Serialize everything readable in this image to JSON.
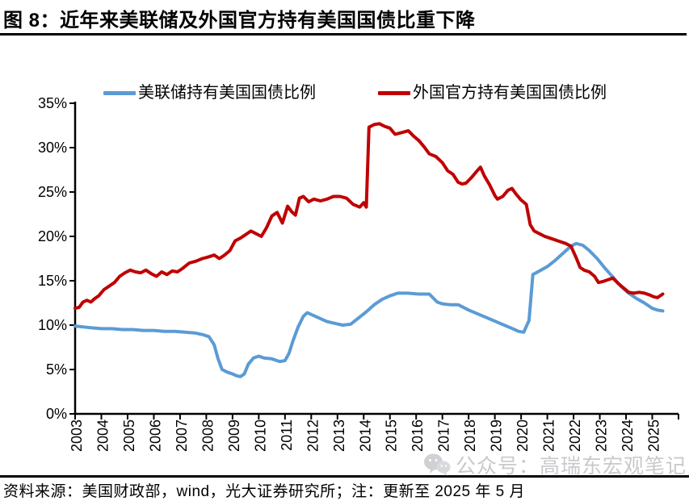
{
  "title": "图 8：近年来美联储及外国官方持有美国国债比重下降",
  "legend": [
    {
      "label": "美联储持有美国国债比例",
      "color": "#5B9BD5"
    },
    {
      "label": "外国官方持有美国国债比例",
      "color": "#C00000"
    }
  ],
  "watermark": {
    "icon": "wechat-icon",
    "text": "公众号：高瑞东宏观笔记"
  },
  "footer": {
    "text": "资料来源：美国财政部，wind，光大证券研究所；注：更新至 2025 年 5 月"
  },
  "chart_data": {
    "type": "line",
    "title": "图 8：近年来美联储及外国官方持有美国国债比重下降",
    "xlabel": "",
    "ylabel": "",
    "ylim": [
      0,
      35
    ],
    "xlim": [
      2003,
      2026
    ],
    "y_tick_unit": "%",
    "y_ticks": [
      "0%",
      "5%",
      "10%",
      "15%",
      "20%",
      "25%",
      "30%",
      "35%"
    ],
    "x_ticks": [
      "2003",
      "2004",
      "2005",
      "2006",
      "2007",
      "2008",
      "2009",
      "2010",
      "2011",
      "2012",
      "2013",
      "2014",
      "2015",
      "2016",
      "2017",
      "2018",
      "2019",
      "2020",
      "2021",
      "2022",
      "2023",
      "2024",
      "2025"
    ],
    "grid": false,
    "legend_position": "top",
    "axis_color": "#000000",
    "series": [
      {
        "name": "美联储持有美国国债比例",
        "color": "#5B9BD5",
        "points": [
          [
            2003.0,
            9.9
          ],
          [
            2003.3,
            9.8
          ],
          [
            2003.6,
            9.7
          ],
          [
            2004.0,
            9.6
          ],
          [
            2004.4,
            9.6
          ],
          [
            2004.8,
            9.5
          ],
          [
            2005.2,
            9.5
          ],
          [
            2005.6,
            9.4
          ],
          [
            2006.0,
            9.4
          ],
          [
            2006.4,
            9.3
          ],
          [
            2006.8,
            9.3
          ],
          [
            2007.2,
            9.2
          ],
          [
            2007.6,
            9.1
          ],
          [
            2007.9,
            8.9
          ],
          [
            2008.1,
            8.7
          ],
          [
            2008.3,
            7.8
          ],
          [
            2008.45,
            6.2
          ],
          [
            2008.6,
            5.0
          ],
          [
            2008.8,
            4.7
          ],
          [
            2009.0,
            4.5
          ],
          [
            2009.15,
            4.3
          ],
          [
            2009.3,
            4.2
          ],
          [
            2009.45,
            4.5
          ],
          [
            2009.6,
            5.6
          ],
          [
            2009.8,
            6.3
          ],
          [
            2010.0,
            6.5
          ],
          [
            2010.2,
            6.3
          ],
          [
            2010.5,
            6.2
          ],
          [
            2010.8,
            5.9
          ],
          [
            2011.0,
            6.0
          ],
          [
            2011.15,
            6.8
          ],
          [
            2011.3,
            8.2
          ],
          [
            2011.5,
            9.8
          ],
          [
            2011.7,
            11.0
          ],
          [
            2011.85,
            11.4
          ],
          [
            2012.0,
            11.2
          ],
          [
            2012.3,
            10.8
          ],
          [
            2012.6,
            10.4
          ],
          [
            2012.9,
            10.2
          ],
          [
            2013.2,
            10.0
          ],
          [
            2013.5,
            10.1
          ],
          [
            2013.8,
            10.8
          ],
          [
            2014.1,
            11.5
          ],
          [
            2014.4,
            12.3
          ],
          [
            2014.7,
            12.9
          ],
          [
            2015.0,
            13.3
          ],
          [
            2015.3,
            13.6
          ],
          [
            2015.7,
            13.6
          ],
          [
            2016.1,
            13.5
          ],
          [
            2016.5,
            13.5
          ],
          [
            2016.8,
            12.6
          ],
          [
            2017.0,
            12.4
          ],
          [
            2017.3,
            12.3
          ],
          [
            2017.6,
            12.3
          ],
          [
            2018.0,
            11.7
          ],
          [
            2018.4,
            11.2
          ],
          [
            2018.8,
            10.7
          ],
          [
            2019.2,
            10.2
          ],
          [
            2019.6,
            9.7
          ],
          [
            2019.9,
            9.3
          ],
          [
            2020.1,
            9.2
          ],
          [
            2020.25,
            10.2
          ],
          [
            2020.3,
            10.5
          ],
          [
            2020.45,
            15.7
          ],
          [
            2020.7,
            16.1
          ],
          [
            2021.0,
            16.6
          ],
          [
            2021.3,
            17.3
          ],
          [
            2021.6,
            18.1
          ],
          [
            2021.9,
            18.9
          ],
          [
            2022.1,
            19.2
          ],
          [
            2022.35,
            19.0
          ],
          [
            2022.6,
            18.4
          ],
          [
            2022.9,
            17.5
          ],
          [
            2023.2,
            16.4
          ],
          [
            2023.5,
            15.4
          ],
          [
            2023.8,
            14.4
          ],
          [
            2024.1,
            13.6
          ],
          [
            2024.4,
            13.0
          ],
          [
            2024.7,
            12.5
          ],
          [
            2025.0,
            11.9
          ],
          [
            2025.2,
            11.7
          ],
          [
            2025.4,
            11.6
          ]
        ]
      },
      {
        "name": "外国官方持有美国国债比例",
        "color": "#C00000",
        "points": [
          [
            2003.0,
            11.9
          ],
          [
            2003.15,
            12.0
          ],
          [
            2003.3,
            12.6
          ],
          [
            2003.45,
            12.8
          ],
          [
            2003.6,
            12.6
          ],
          [
            2003.75,
            13.0
          ],
          [
            2003.9,
            13.3
          ],
          [
            2004.1,
            14.0
          ],
          [
            2004.3,
            14.4
          ],
          [
            2004.5,
            14.8
          ],
          [
            2004.7,
            15.5
          ],
          [
            2004.9,
            15.9
          ],
          [
            2005.1,
            16.2
          ],
          [
            2005.3,
            16.0
          ],
          [
            2005.5,
            15.9
          ],
          [
            2005.7,
            16.2
          ],
          [
            2005.9,
            15.8
          ],
          [
            2006.1,
            15.5
          ],
          [
            2006.3,
            16.0
          ],
          [
            2006.5,
            15.7
          ],
          [
            2006.7,
            16.1
          ],
          [
            2006.9,
            16.0
          ],
          [
            2007.1,
            16.4
          ],
          [
            2007.35,
            17.0
          ],
          [
            2007.6,
            17.2
          ],
          [
            2007.85,
            17.5
          ],
          [
            2008.1,
            17.7
          ],
          [
            2008.3,
            17.9
          ],
          [
            2008.5,
            17.5
          ],
          [
            2008.7,
            17.9
          ],
          [
            2008.9,
            18.4
          ],
          [
            2009.1,
            19.5
          ],
          [
            2009.3,
            19.8
          ],
          [
            2009.5,
            20.2
          ],
          [
            2009.7,
            20.6
          ],
          [
            2009.9,
            20.3
          ],
          [
            2010.1,
            20.0
          ],
          [
            2010.3,
            21.0
          ],
          [
            2010.5,
            22.3
          ],
          [
            2010.7,
            22.7
          ],
          [
            2010.9,
            21.5
          ],
          [
            2011.1,
            23.4
          ],
          [
            2011.25,
            22.8
          ],
          [
            2011.4,
            22.4
          ],
          [
            2011.55,
            24.3
          ],
          [
            2011.7,
            24.5
          ],
          [
            2011.9,
            23.9
          ],
          [
            2012.1,
            24.2
          ],
          [
            2012.35,
            24.0
          ],
          [
            2012.6,
            24.2
          ],
          [
            2012.85,
            24.5
          ],
          [
            2013.1,
            24.5
          ],
          [
            2013.35,
            24.3
          ],
          [
            2013.6,
            23.6
          ],
          [
            2013.85,
            23.3
          ],
          [
            2014.0,
            23.8
          ],
          [
            2014.1,
            23.3
          ],
          [
            2014.2,
            32.3
          ],
          [
            2014.4,
            32.6
          ],
          [
            2014.6,
            32.7
          ],
          [
            2014.8,
            32.4
          ],
          [
            2015.0,
            32.2
          ],
          [
            2015.2,
            31.5
          ],
          [
            2015.45,
            31.7
          ],
          [
            2015.7,
            31.9
          ],
          [
            2015.9,
            31.3
          ],
          [
            2016.1,
            30.8
          ],
          [
            2016.3,
            30.1
          ],
          [
            2016.5,
            29.3
          ],
          [
            2016.75,
            29.0
          ],
          [
            2017.0,
            28.3
          ],
          [
            2017.2,
            27.4
          ],
          [
            2017.4,
            27.0
          ],
          [
            2017.6,
            26.1
          ],
          [
            2017.75,
            25.9
          ],
          [
            2017.9,
            26.0
          ],
          [
            2018.1,
            26.6
          ],
          [
            2018.3,
            27.3
          ],
          [
            2018.45,
            27.8
          ],
          [
            2018.6,
            26.8
          ],
          [
            2018.8,
            25.8
          ],
          [
            2019.0,
            24.6
          ],
          [
            2019.1,
            24.2
          ],
          [
            2019.3,
            24.5
          ],
          [
            2019.5,
            25.2
          ],
          [
            2019.65,
            25.4
          ],
          [
            2019.8,
            24.8
          ],
          [
            2020.0,
            24.1
          ],
          [
            2020.2,
            23.6
          ],
          [
            2020.35,
            21.3
          ],
          [
            2020.5,
            20.6
          ],
          [
            2020.7,
            20.3
          ],
          [
            2020.9,
            20.0
          ],
          [
            2021.1,
            19.8
          ],
          [
            2021.4,
            19.5
          ],
          [
            2021.7,
            19.2
          ],
          [
            2021.9,
            18.9
          ],
          [
            2022.1,
            17.6
          ],
          [
            2022.25,
            16.5
          ],
          [
            2022.4,
            16.2
          ],
          [
            2022.6,
            16.0
          ],
          [
            2022.8,
            15.5
          ],
          [
            2022.95,
            14.8
          ],
          [
            2023.1,
            14.9
          ],
          [
            2023.3,
            15.1
          ],
          [
            2023.5,
            15.3
          ],
          [
            2023.7,
            14.7
          ],
          [
            2023.9,
            14.2
          ],
          [
            2024.1,
            13.7
          ],
          [
            2024.3,
            13.6
          ],
          [
            2024.5,
            13.7
          ],
          [
            2024.7,
            13.6
          ],
          [
            2024.9,
            13.4
          ],
          [
            2025.05,
            13.2
          ],
          [
            2025.2,
            13.1
          ],
          [
            2025.4,
            13.5
          ]
        ]
      }
    ]
  }
}
